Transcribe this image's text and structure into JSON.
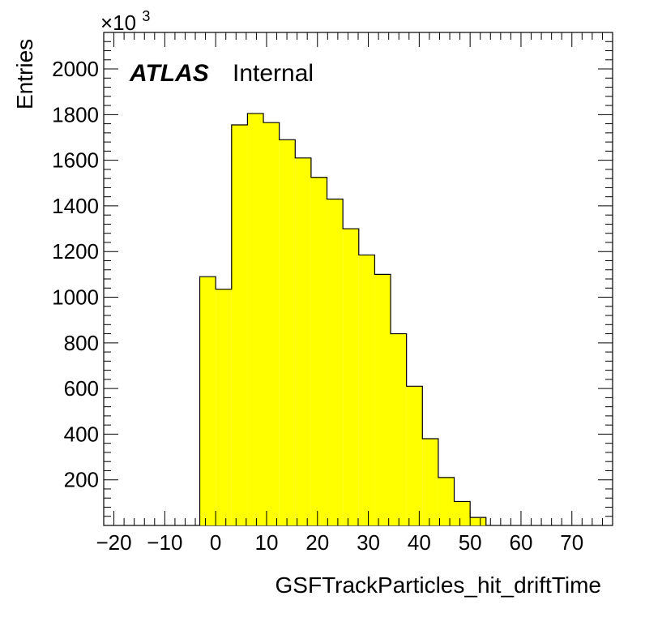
{
  "chart_data": {
    "type": "bar",
    "title": "",
    "xlabel": "GSFTrackParticles_hit_driftTime",
    "ylabel": "Entries",
    "y_multiplier": "×10",
    "y_multiplier_exponent": "3",
    "label_bold": "ATLAS",
    "label": "Internal",
    "xlim": [
      -22,
      78
    ],
    "ylim": [
      0,
      2160
    ],
    "x_ticks": [
      -20,
      -10,
      0,
      10,
      20,
      30,
      40,
      50,
      60,
      70
    ],
    "x_tick_labels": [
      "−20",
      "−10",
      "0",
      "10",
      "20",
      "30",
      "40",
      "50",
      "60",
      "70"
    ],
    "y_ticks": [
      200,
      400,
      600,
      800,
      1000,
      1200,
      1400,
      1600,
      1800,
      2000
    ],
    "y_tick_labels": [
      "200",
      "400",
      "600",
      "800",
      "1000",
      "1200",
      "1400",
      "1600",
      "1800",
      "2000"
    ],
    "bin_edges": [
      -3.125,
      0,
      3.125,
      6.25,
      9.375,
      12.5,
      15.625,
      18.75,
      21.875,
      25,
      28.125,
      31.25,
      34.375,
      37.5,
      40.625,
      43.75,
      46.875,
      50,
      53.125
    ],
    "values": [
      1090,
      1035,
      1755,
      1805,
      1765,
      1690,
      1610,
      1525,
      1430,
      1300,
      1185,
      1100,
      840,
      610,
      380,
      210,
      105,
      35
    ],
    "fill_color": "#ffff00",
    "line_color": "#000000",
    "grid": false
  }
}
